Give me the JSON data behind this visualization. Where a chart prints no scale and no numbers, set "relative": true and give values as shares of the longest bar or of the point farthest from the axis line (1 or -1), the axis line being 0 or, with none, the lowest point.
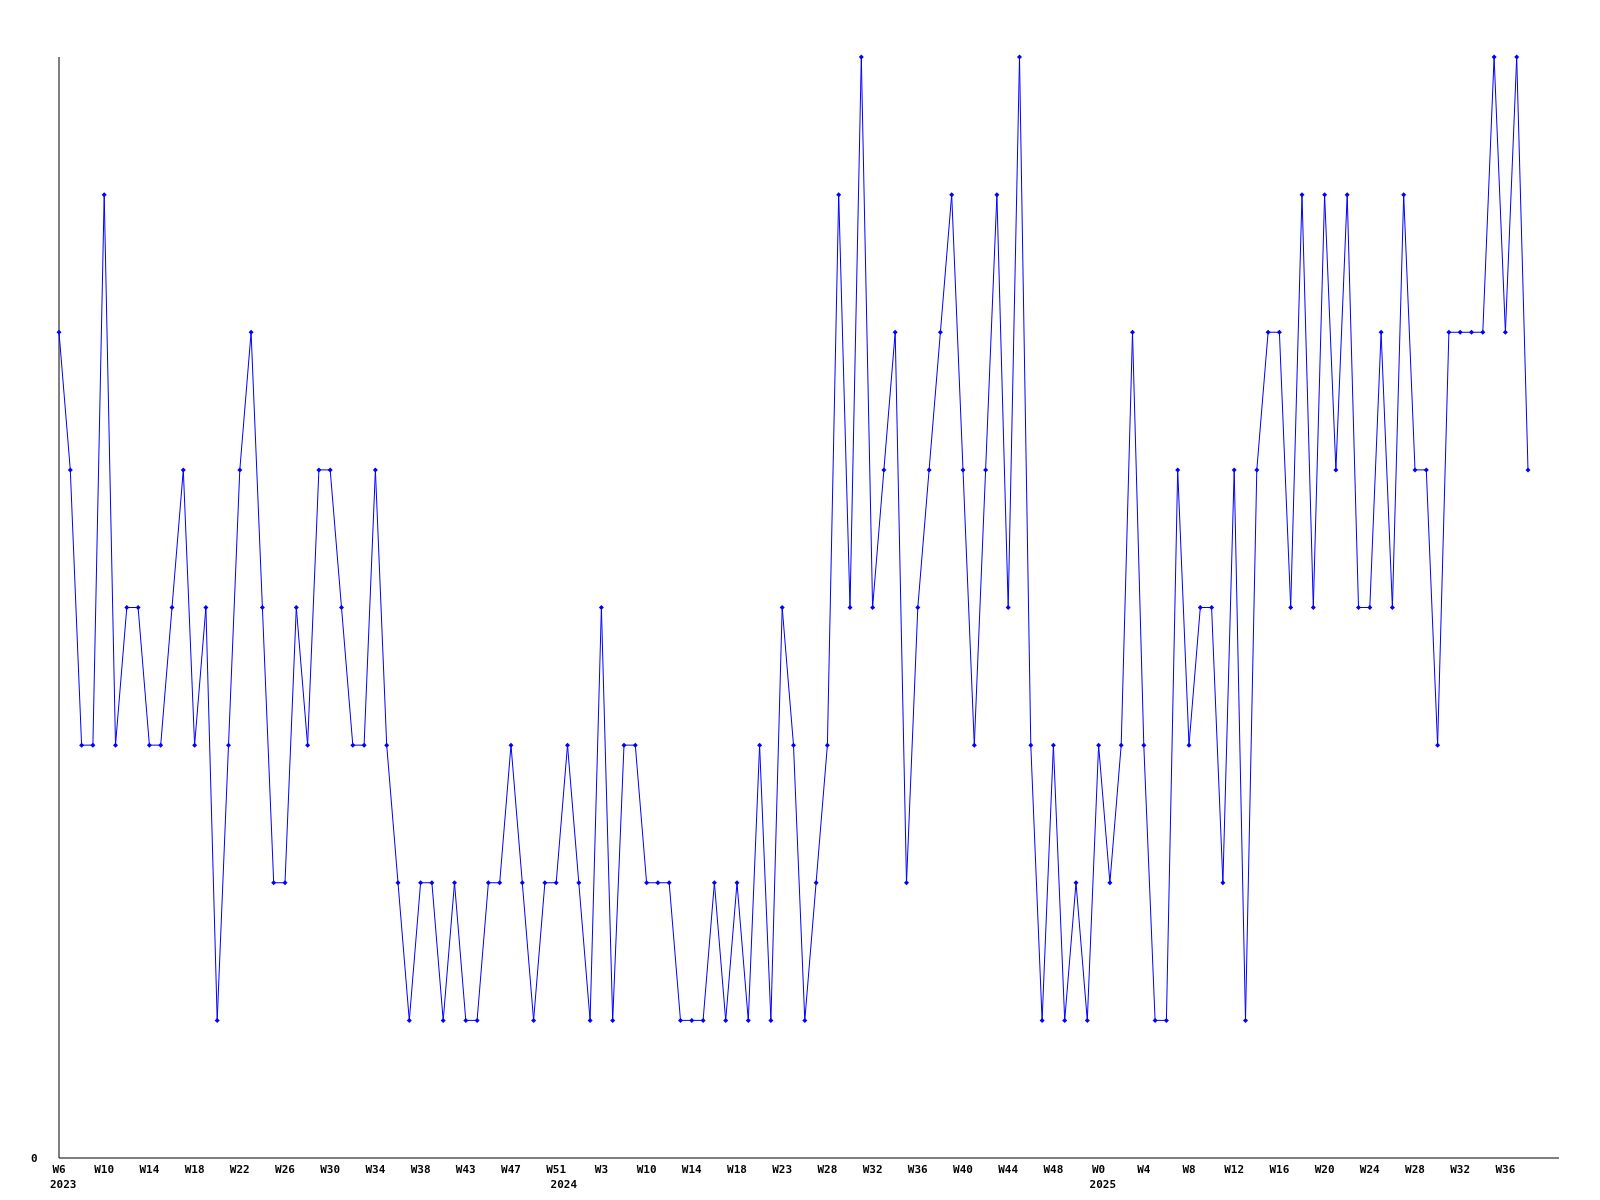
{
  "chart_data": {
    "type": "line",
    "relative": true,
    "marker": "diamond",
    "tick_labels": "x",
    "annotations": [
      "0",
      "2023",
      "2024",
      "2025"
    ],
    "categories": [
      "W6",
      null,
      null,
      null,
      "W10",
      null,
      null,
      null,
      "W14",
      null,
      null,
      null,
      "W18",
      null,
      null,
      null,
      "W22",
      null,
      null,
      null,
      "W26",
      null,
      null,
      null,
      "W30",
      null,
      null,
      null,
      "W34",
      null,
      null,
      null,
      "W38",
      null,
      null,
      null,
      "W43",
      null,
      null,
      null,
      "W47",
      null,
      null,
      null,
      "W51",
      null,
      null,
      null,
      "W3",
      null,
      null,
      null,
      "W10",
      null,
      null,
      null,
      "W14",
      null,
      null,
      null,
      "W18",
      null,
      null,
      null,
      "W23",
      null,
      null,
      null,
      "W28",
      null,
      null,
      null,
      "W32",
      null,
      null,
      null,
      "W36",
      null,
      null,
      null,
      "W40",
      null,
      null,
      null,
      "W44",
      null,
      null,
      null,
      "W48",
      null,
      null,
      null,
      "W0",
      null,
      null,
      null,
      "W4",
      null,
      null,
      null,
      "W8",
      null,
      null,
      null,
      "W12",
      null,
      null,
      null,
      "W16",
      null,
      null,
      null,
      "W20",
      null,
      null,
      null,
      "W24",
      null,
      null,
      null,
      "W28",
      null,
      null,
      null,
      "W32",
      null,
      null,
      null,
      "W36",
      null,
      null
    ],
    "series": [
      {
        "color": "#0000ff",
        "values": [
          0.75,
          0.625,
          0.375,
          0.375,
          0.875,
          0.375,
          0.5,
          0.5,
          0.375,
          0.375,
          0.5,
          0.625,
          0.375,
          0.5,
          0.125,
          0.375,
          0.625,
          0.75,
          0.5,
          0.25,
          0.25,
          0.5,
          0.375,
          0.625,
          0.625,
          0.5,
          0.375,
          0.375,
          0.625,
          0.375,
          0.25,
          0.125,
          0.25,
          0.25,
          0.125,
          0.25,
          0.125,
          0.125,
          0.25,
          0.25,
          0.375,
          0.25,
          0.125,
          0.25,
          0.25,
          0.375,
          0.25,
          0.125,
          0.5,
          0.125,
          0.375,
          0.375,
          0.25,
          0.25,
          0.25,
          0.125,
          0.125,
          0.125,
          0.25,
          0.125,
          0.25,
          0.125,
          0.375,
          0.125,
          0.5,
          0.375,
          0.125,
          0.25,
          0.375,
          0.875,
          0.5,
          1,
          0.5,
          0.625,
          0.75,
          0.25,
          0.5,
          0.625,
          0.75,
          0.875,
          0.625,
          0.375,
          0.625,
          0.875,
          0.5,
          1,
          0.375,
          0.125,
          0.375,
          0.125,
          0.25,
          0.125,
          0.375,
          0.25,
          0.375,
          0.75,
          0.375,
          0.125,
          0.125,
          0.625,
          0.375,
          0.5,
          0.5,
          0.25,
          0.625,
          0.125,
          0.625,
          0.75,
          0.75,
          0.5,
          0.875,
          0.5,
          0.875,
          0.625,
          0.875,
          0.5,
          0.5,
          0.75,
          0.5,
          0.875,
          0.625,
          0.625,
          0.375,
          0.75,
          0.75,
          0.75,
          0.75,
          1,
          0.75,
          1,
          0.625
        ]
      }
    ]
  }
}
